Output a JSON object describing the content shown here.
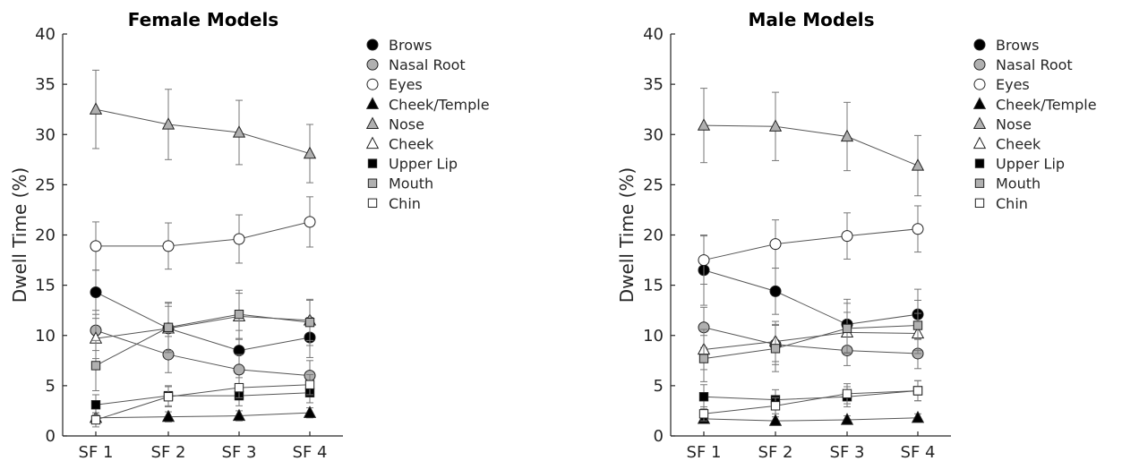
{
  "chart_data": [
    {
      "type": "line",
      "title": "Female Models",
      "ylabel": "Dwell Time (%)",
      "xlabel": "",
      "categories": [
        "SF 1",
        "SF 2",
        "SF 3",
        "SF 4"
      ],
      "ylim": [
        0,
        40
      ],
      "yticks": [
        0,
        5,
        10,
        15,
        20,
        25,
        30,
        35,
        40
      ],
      "legend_position": "right",
      "series": [
        {
          "name": "Brows",
          "marker": "circle",
          "fill": "#000000",
          "values": [
            14.3,
            10.7,
            8.5,
            9.8
          ],
          "error": [
            2.2,
            2.5,
            2.0,
            2.0
          ]
        },
        {
          "name": "Nasal Root",
          "marker": "circle",
          "fill": "#b0b0b0",
          "values": [
            10.5,
            8.1,
            6.6,
            6.0
          ],
          "error": [
            2.0,
            1.8,
            1.5,
            1.5
          ]
        },
        {
          "name": "Eyes",
          "marker": "circle",
          "fill": "#ffffff",
          "values": [
            18.9,
            18.9,
            19.6,
            21.3
          ],
          "error": [
            2.4,
            2.3,
            2.4,
            2.5
          ]
        },
        {
          "name": "Cheek/Temple",
          "marker": "triangle",
          "fill": "#000000",
          "values": [
            1.8,
            1.9,
            2.0,
            2.3
          ],
          "error": [
            0.5,
            0.5,
            0.5,
            0.5
          ]
        },
        {
          "name": "Nose",
          "marker": "triangle",
          "fill": "#b0b0b0",
          "values": [
            32.5,
            31.0,
            30.2,
            28.1
          ],
          "error": [
            3.9,
            3.5,
            3.2,
            2.9
          ]
        },
        {
          "name": "Cheek",
          "marker": "triangle",
          "fill": "#ffffff",
          "values": [
            9.7,
            10.7,
            11.9,
            11.5
          ],
          "error": [
            2.0,
            2.2,
            2.3,
            2.0
          ]
        },
        {
          "name": "Upper Lip",
          "marker": "square",
          "fill": "#000000",
          "values": [
            3.1,
            4.0,
            4.0,
            4.3
          ],
          "error": [
            1.0,
            1.0,
            1.0,
            1.0
          ]
        },
        {
          "name": "Mouth",
          "marker": "square",
          "fill": "#b0b0b0",
          "values": [
            7.0,
            10.8,
            12.1,
            11.3
          ],
          "error": [
            2.5,
            2.5,
            2.4,
            2.3
          ]
        },
        {
          "name": "Chin",
          "marker": "square",
          "fill": "#ffffff",
          "values": [
            1.6,
            3.9,
            4.8,
            5.1
          ],
          "error": [
            0.7,
            1.0,
            1.0,
            1.0
          ]
        }
      ]
    },
    {
      "type": "line",
      "title": "Male Models",
      "ylabel": "Dwell Time (%)",
      "xlabel": "",
      "categories": [
        "SF 1",
        "SF 2",
        "SF 3",
        "SF 4"
      ],
      "ylim": [
        0,
        40
      ],
      "yticks": [
        0,
        5,
        10,
        15,
        20,
        25,
        30,
        35,
        40
      ],
      "legend_position": "right",
      "series": [
        {
          "name": "Brows",
          "marker": "circle",
          "fill": "#000000",
          "values": [
            16.5,
            14.4,
            11.1,
            12.1
          ],
          "error": [
            3.5,
            2.3,
            2.5,
            2.5
          ]
        },
        {
          "name": "Nasal Root",
          "marker": "circle",
          "fill": "#b0b0b0",
          "values": [
            10.8,
            9.1,
            8.5,
            8.2
          ],
          "error": [
            2.0,
            2.0,
            1.5,
            1.5
          ]
        },
        {
          "name": "Eyes",
          "marker": "circle",
          "fill": "#ffffff",
          "values": [
            17.5,
            19.1,
            19.9,
            20.6
          ],
          "error": [
            2.4,
            2.4,
            2.3,
            2.3
          ]
        },
        {
          "name": "Cheek/Temple",
          "marker": "triangle",
          "fill": "#000000",
          "values": [
            1.7,
            1.5,
            1.6,
            1.8
          ],
          "error": [
            0.4,
            0.4,
            0.4,
            0.4
          ]
        },
        {
          "name": "Nose",
          "marker": "triangle",
          "fill": "#b0b0b0",
          "values": [
            30.9,
            30.8,
            29.8,
            26.9
          ],
          "error": [
            3.7,
            3.4,
            3.4,
            3.0
          ]
        },
        {
          "name": "Cheek",
          "marker": "triangle",
          "fill": "#ffffff",
          "values": [
            8.6,
            9.4,
            10.3,
            10.2
          ],
          "error": [
            2.0,
            2.0,
            2.0,
            2.0
          ]
        },
        {
          "name": "Upper Lip",
          "marker": "square",
          "fill": "#000000",
          "values": [
            3.9,
            3.6,
            3.9,
            4.5
          ],
          "error": [
            1.2,
            1.0,
            1.0,
            1.0
          ]
        },
        {
          "name": "Mouth",
          "marker": "square",
          "fill": "#b0b0b0",
          "values": [
            7.7,
            8.7,
            10.7,
            11.0
          ],
          "error": [
            2.3,
            2.3,
            2.5,
            2.5
          ]
        },
        {
          "name": "Chin",
          "marker": "square",
          "fill": "#ffffff",
          "values": [
            2.2,
            3.0,
            4.2,
            4.5
          ],
          "error": [
            0.7,
            0.8,
            1.0,
            1.0
          ]
        }
      ]
    }
  ]
}
